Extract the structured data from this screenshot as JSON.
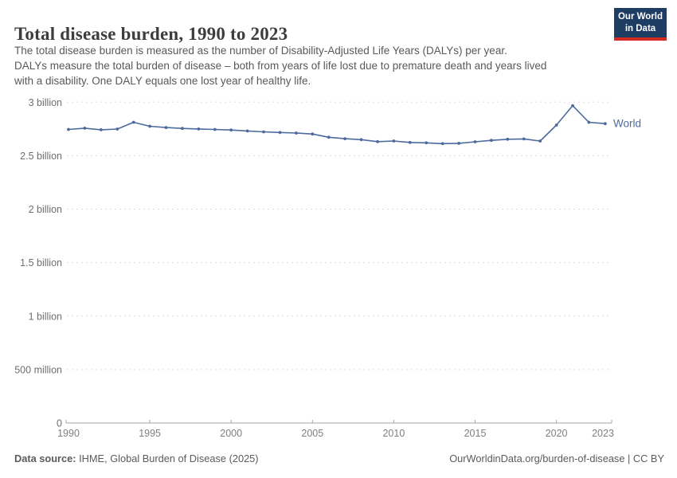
{
  "header": {
    "title": "Total disease burden, 1990 to 2023",
    "logo": {
      "line1": "Our World",
      "line2": "in Data"
    }
  },
  "subtitle": {
    "lines": [
      "The total disease burden is measured as the number of Disability-Adjusted Life Years (DALYs) per year.",
      "DALYs measure the total burden of disease – both from years of life lost due to premature death and years lived",
      "with a disability. One DALY equals one lost year of healthy life."
    ]
  },
  "chart_data": {
    "type": "line",
    "title": "Total disease burden, 1990 to 2023",
    "unit": "billion DALYs per year",
    "x": [
      1990,
      1991,
      1992,
      1993,
      1994,
      1995,
      1996,
      1997,
      1998,
      1999,
      2000,
      2001,
      2002,
      2003,
      2004,
      2005,
      2006,
      2007,
      2008,
      2009,
      2010,
      2011,
      2012,
      2013,
      2014,
      2015,
      2016,
      2017,
      2018,
      2019,
      2020,
      2021,
      2022,
      2023
    ],
    "series": [
      {
        "name": "World",
        "color": "#4c6a9c",
        "values": [
          2.745,
          2.757,
          2.742,
          2.749,
          2.812,
          2.775,
          2.763,
          2.755,
          2.75,
          2.745,
          2.74,
          2.731,
          2.723,
          2.717,
          2.712,
          2.703,
          2.672,
          2.659,
          2.65,
          2.631,
          2.637,
          2.624,
          2.62,
          2.613,
          2.616,
          2.63,
          2.643,
          2.654,
          2.657,
          2.637,
          2.786,
          2.968,
          2.812,
          2.8
        ]
      }
    ],
    "end_label": "World",
    "ylim": [
      0,
      3
    ],
    "yticks": [
      {
        "value": 0,
        "label": "0"
      },
      {
        "value": 0.5,
        "label": "500 million"
      },
      {
        "value": 1,
        "label": "1 billion"
      },
      {
        "value": 1.5,
        "label": "1.5 billion"
      },
      {
        "value": 2,
        "label": "2 billion"
      },
      {
        "value": 2.5,
        "label": "2.5 billion"
      },
      {
        "value": 3,
        "label": "3 billion"
      }
    ],
    "xticks": [
      1990,
      1995,
      2000,
      2005,
      2010,
      2015,
      2020,
      2023
    ],
    "grid": "horizontal-dashed",
    "legend_position": "end-of-line"
  },
  "footer": {
    "source_label": "Data source:",
    "source_text": " IHME, Global Burden of Disease (2025)",
    "credit": "OurWorldinData.org/burden-of-disease | CC BY"
  },
  "colors": {
    "line": "#4c6a9c",
    "grid": "#dddddd",
    "axis": "#a5a5a5",
    "y_tick_text": "#6e6e6e",
    "x_tick_text": "#7e7e7e",
    "logo_bg": "#1d3d63",
    "logo_stripe": "#d42b21",
    "title_text": "#3d3d3d",
    "subtitle_text": "#595959"
  }
}
